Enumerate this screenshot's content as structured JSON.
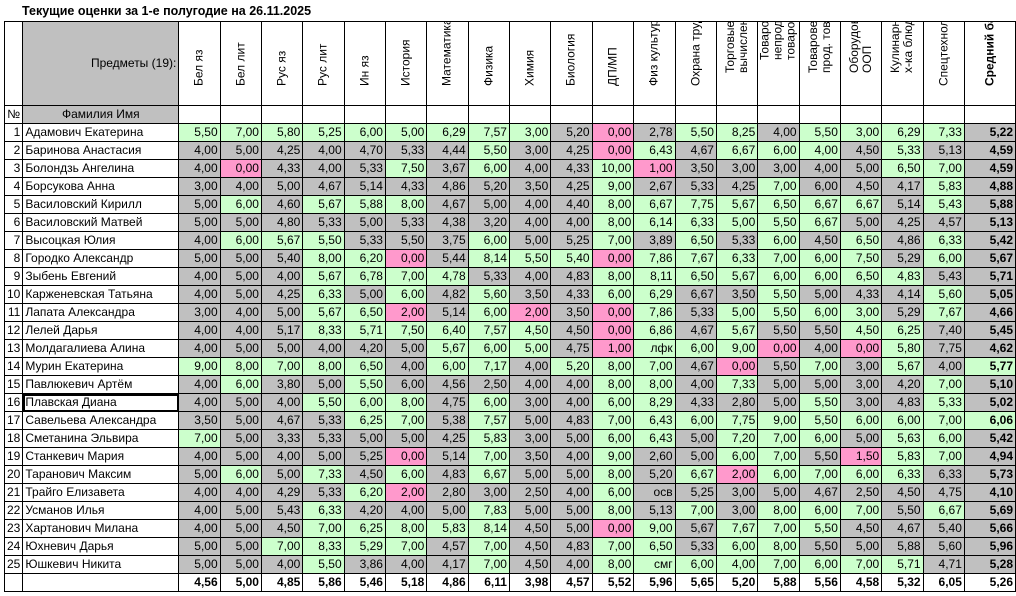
{
  "title": "Текущие оценки за 1-е полугодие на 26.11.2025",
  "header": {
    "subjects_label": "Предметы (19):",
    "name_label": "Фамилия Имя",
    "no_label": "№",
    "subjects": [
      "Бел яз",
      "Бел лит",
      "Рус яз",
      "Рус лит",
      "Ин яз",
      "История",
      "Математика",
      "Физика",
      "Химия",
      "Биология",
      "ДП/МП",
      "Физ культура",
      "Охрана труда",
      "Торговые вычисления",
      "Товароведение непрод. товаров",
      "Товароведение прод. товаров",
      "Оборудование ООП",
      "Кулинарная х-ка блюд",
      "Спецтехнология",
      "Средний балл"
    ]
  },
  "rows": [
    {
      "n": "1",
      "name": "Адамович Екатерина",
      "v": [
        "5,50",
        "7,00",
        "5,80",
        "5,25",
        "6,00",
        "5,00",
        "6,29",
        "7,57",
        "3,00",
        "5,20",
        "0,00",
        "2,78",
        "5,50",
        "8,25",
        "4,00",
        "5,50",
        "3,00",
        "6,29",
        "7,33",
        "5,22"
      ],
      "c": "gggggggggxpxggxggggx"
    },
    {
      "n": "2",
      "name": "Баринова Анастасия",
      "v": [
        "4,00",
        "5,00",
        "4,25",
        "4,00",
        "4,70",
        "5,33",
        "4,44",
        "5,50",
        "3,00",
        "4,25",
        "0,00",
        "6,43",
        "4,67",
        "6,67",
        "6,00",
        "4,00",
        "4,50",
        "5,33",
        "5,13",
        "4,59"
      ],
      "c": "xxxxxxxgxxpgxgggxgxx"
    },
    {
      "n": "3",
      "name": "Болондзь Ангелина",
      "v": [
        "4,00",
        "0,00",
        "4,33",
        "4,00",
        "5,33",
        "7,50",
        "3,67",
        "6,00",
        "4,00",
        "4,33",
        "10,00",
        "1,00",
        "3,50",
        "3,00",
        "3,00",
        "4,00",
        "5,00",
        "6,50",
        "7,00",
        "4,59"
      ],
      "c": "xpxxxgxgxxgpxxxxxggx"
    },
    {
      "n": "4",
      "name": "Борсукова Анна",
      "v": [
        "3,00",
        "4,00",
        "5,00",
        "4,67",
        "5,14",
        "4,33",
        "4,86",
        "5,20",
        "3,50",
        "4,25",
        "9,00",
        "2,67",
        "5,33",
        "4,25",
        "7,00",
        "6,00",
        "4,50",
        "4,17",
        "5,83",
        "4,88"
      ],
      "c": "xxxxxxxxxxgxxxgxxxgx"
    },
    {
      "n": "5",
      "name": "Василовский Кирилл",
      "v": [
        "5,00",
        "6,00",
        "4,60",
        "5,67",
        "5,88",
        "8,00",
        "4,67",
        "5,00",
        "4,00",
        "4,40",
        "8,00",
        "6,67",
        "7,75",
        "5,67",
        "6,50",
        "6,67",
        "6,67",
        "5,14",
        "5,43",
        "5,88"
      ],
      "c": "xgxgggxxxxgggggggxgx"
    },
    {
      "n": "6",
      "name": "Василовский Матвей",
      "v": [
        "5,00",
        "5,00",
        "4,80",
        "5,33",
        "5,00",
        "5,33",
        "4,38",
        "3,20",
        "4,00",
        "4,00",
        "8,00",
        "6,14",
        "6,33",
        "5,00",
        "5,50",
        "6,67",
        "5,00",
        "4,25",
        "4,57",
        "5,13"
      ],
      "c": "xxxxxxxxxxggggggxxxx"
    },
    {
      "n": "7",
      "name": "Высоцкая Юлия",
      "v": [
        "4,00",
        "6,00",
        "5,67",
        "5,50",
        "5,33",
        "5,50",
        "3,75",
        "6,00",
        "5,00",
        "5,25",
        "7,00",
        "3,89",
        "6,50",
        "5,33",
        "6,00",
        "4,50",
        "6,50",
        "4,86",
        "6,33",
        "5,42"
      ],
      "c": "xgggxxxgxxgxgxgxgxgx"
    },
    {
      "n": "8",
      "name": "Городко Александр",
      "v": [
        "5,00",
        "5,00",
        "5,40",
        "8,00",
        "6,20",
        "0,00",
        "5,44",
        "8,14",
        "5,50",
        "5,40",
        "0,00",
        "7,86",
        "7,67",
        "6,33",
        "7,00",
        "6,00",
        "7,50",
        "5,29",
        "6,00",
        "5,67"
      ],
      "c": "xxxggpxgggpggggggxgx"
    },
    {
      "n": "9",
      "name": "Зыбень Евгений",
      "v": [
        "4,00",
        "5,00",
        "4,00",
        "5,67",
        "6,78",
        "7,00",
        "4,78",
        "5,33",
        "4,00",
        "4,83",
        "8,00",
        "8,11",
        "6,50",
        "5,67",
        "6,00",
        "6,00",
        "6,50",
        "4,83",
        "5,43",
        "5,71"
      ],
      "c": "xxxggggxxxggggggggxx"
    },
    {
      "n": "10",
      "name": "Карженевская Татьяна",
      "v": [
        "4,00",
        "5,00",
        "4,25",
        "6,33",
        "5,00",
        "6,00",
        "4,82",
        "5,60",
        "3,50",
        "4,33",
        "6,00",
        "6,29",
        "6,67",
        "3,50",
        "5,50",
        "5,00",
        "4,33",
        "4,14",
        "5,60",
        "5,05"
      ],
      "c": "xxxgxgxgxxggxxgxxxgx"
    },
    {
      "n": "11",
      "name": "Лапата Александра",
      "v": [
        "3,00",
        "4,00",
        "5,00",
        "5,67",
        "6,50",
        "2,00",
        "5,14",
        "6,00",
        "2,00",
        "3,50",
        "0,00",
        "7,86",
        "5,33",
        "5,00",
        "5,50",
        "6,00",
        "3,00",
        "5,29",
        "7,67",
        "4,66"
      ],
      "c": "xxxggpxgpxpgxggggxgx"
    },
    {
      "n": "12",
      "name": "Лелей Дарья",
      "v": [
        "4,00",
        "4,00",
        "5,17",
        "8,33",
        "5,71",
        "7,50",
        "6,40",
        "7,57",
        "4,50",
        "4,50",
        "0,00",
        "6,86",
        "4,67",
        "5,67",
        "5,50",
        "5,50",
        "4,50",
        "6,25",
        "7,40",
        "5,45"
      ],
      "c": "xxxggggggxpgxgxxggxx"
    },
    {
      "n": "13",
      "name": "Молдагалиева Алина",
      "v": [
        "4,00",
        "5,00",
        "5,00",
        "4,00",
        "4,20",
        "5,00",
        "5,67",
        "6,00",
        "5,00",
        "4,75",
        "1,00",
        "лфк",
        "6,00",
        "9,00",
        "0,00",
        "4,00",
        "0,00",
        "5,80",
        "7,75",
        "4,62"
      ],
      "c": "xxxxxxgggxpgggpxpgxx"
    },
    {
      "n": "14",
      "name": "Мурин Екатерина",
      "v": [
        "9,00",
        "8,00",
        "7,00",
        "8,00",
        "6,50",
        "4,00",
        "6,00",
        "7,17",
        "4,00",
        "5,20",
        "8,00",
        "7,00",
        "4,67",
        "0,00",
        "5,50",
        "7,00",
        "3,00",
        "5,67",
        "4,00",
        "5,77"
      ],
      "c": "gggggxggxgggxpxgxgxg"
    },
    {
      "n": "15",
      "name": "Павлюкевич Артём",
      "v": [
        "4,00",
        "6,00",
        "3,80",
        "5,00",
        "5,50",
        "6,00",
        "4,56",
        "2,50",
        "4,00",
        "4,00",
        "8,00",
        "8,00",
        "4,00",
        "7,33",
        "5,00",
        "5,00",
        "3,00",
        "4,20",
        "7,00",
        "5,10"
      ],
      "c": "xgxxgxxxxxggxgxxxxgx"
    },
    {
      "n": "16",
      "name": "Плавская Диана",
      "v": [
        "4,00",
        "5,00",
        "4,00",
        "5,50",
        "6,00",
        "8,00",
        "4,75",
        "6,00",
        "3,00",
        "4,00",
        "6,00",
        "8,29",
        "4,33",
        "2,80",
        "5,00",
        "5,50",
        "3,00",
        "4,83",
        "5,33",
        "5,02"
      ],
      "c": "xxxgggxgxxggxxxgxxgx"
    },
    {
      "n": "17",
      "name": "Савельева  Александра",
      "v": [
        "3,50",
        "5,00",
        "4,67",
        "5,33",
        "6,25",
        "7,00",
        "5,38",
        "7,57",
        "5,00",
        "4,83",
        "7,00",
        "6,43",
        "6,00",
        "7,75",
        "9,00",
        "5,50",
        "6,00",
        "6,00",
        "7,00",
        "6,06"
      ],
      "c": "xxxxggxgxxgggggggggg"
    },
    {
      "n": "18",
      "name": "Сметанина Эльвира",
      "v": [
        "7,00",
        "5,00",
        "3,33",
        "5,33",
        "5,00",
        "5,00",
        "4,25",
        "5,83",
        "3,00",
        "5,00",
        "6,00",
        "6,43",
        "5,00",
        "7,20",
        "7,00",
        "6,00",
        "5,00",
        "5,63",
        "6,00",
        "5,42"
      ],
      "c": "gxxxxxxgxxggxgggxggx"
    },
    {
      "n": "19",
      "name": "Станкевич Мария",
      "v": [
        "4,00",
        "5,00",
        "4,00",
        "5,00",
        "5,25",
        "0,00",
        "5,14",
        "7,00",
        "3,50",
        "4,00",
        "9,00",
        "2,60",
        "5,00",
        "6,00",
        "7,00",
        "5,50",
        "1,50",
        "5,83",
        "7,00",
        "4,94"
      ],
      "c": "xxxxxpxgxxgxxggxpggx"
    },
    {
      "n": "20",
      "name": "Таранович Максим",
      "v": [
        "5,00",
        "6,00",
        "5,00",
        "7,33",
        "4,50",
        "6,00",
        "4,83",
        "6,67",
        "5,00",
        "5,00",
        "8,00",
        "5,20",
        "6,67",
        "2,00",
        "6,00",
        "7,00",
        "6,00",
        "6,33",
        "6,33",
        "5,73"
      ],
      "c": "xgxgxgxgxxgxgpggggxx"
    },
    {
      "n": "21",
      "name": "Трайго Елизавета",
      "v": [
        "4,00",
        "4,00",
        "4,29",
        "5,33",
        "6,20",
        "2,00",
        "2,80",
        "3,00",
        "2,50",
        "4,00",
        "6,00",
        "осв",
        "5,25",
        "3,00",
        "5,00",
        "4,67",
        "2,50",
        "4,50",
        "4,75",
        "4,10"
      ],
      "c": "xxxxgpxxxxgxxxxxxxxx"
    },
    {
      "n": "22",
      "name": "Усманов Илья",
      "v": [
        "4,00",
        "5,00",
        "5,43",
        "6,33",
        "4,20",
        "4,00",
        "5,00",
        "7,83",
        "5,00",
        "5,00",
        "8,00",
        "5,13",
        "7,00",
        "3,00",
        "8,00",
        "6,00",
        "7,00",
        "5,50",
        "6,67",
        "5,69"
      ],
      "c": "xxxgxxxgxxgxgxgggxgx"
    },
    {
      "n": "23",
      "name": "Хартанович Милана",
      "v": [
        "4,00",
        "5,00",
        "4,50",
        "7,00",
        "6,25",
        "8,00",
        "5,83",
        "8,14",
        "4,50",
        "5,00",
        "0,00",
        "9,00",
        "5,67",
        "7,67",
        "7,00",
        "5,50",
        "4,50",
        "4,67",
        "5,40",
        "5,66"
      ],
      "c": "xxxgggggxxpgxgggxxxx"
    },
    {
      "n": "24",
      "name": "Юхневич Дарья",
      "v": [
        "5,00",
        "5,00",
        "7,00",
        "8,33",
        "5,29",
        "7,00",
        "4,57",
        "7,00",
        "4,50",
        "4,83",
        "7,00",
        "6,50",
        "5,33",
        "6,00",
        "8,00",
        "5,50",
        "5,00",
        "5,88",
        "5,60",
        "5,96"
      ],
      "c": "xxggggxgxxggxggxxxxx"
    },
    {
      "n": "25",
      "name": "Юшкевич Никита",
      "v": [
        "5,00",
        "5,00",
        "4,00",
        "5,50",
        "3,86",
        "4,00",
        "4,17",
        "7,00",
        "4,50",
        "4,00",
        "8,00",
        "смг",
        "6,00",
        "4,00",
        "7,00",
        "6,00",
        "7,00",
        "5,71",
        "4,71",
        "5,28"
      ],
      "c": "xxxgxxxgxxggggggggxx"
    }
  ],
  "footer": [
    "4,56",
    "5,00",
    "4,85",
    "5,86",
    "5,46",
    "5,18",
    "4,86",
    "6,11",
    "3,98",
    "4,57",
    "5,52",
    "5,96",
    "5,65",
    "5,20",
    "5,88",
    "5,56",
    "4,58",
    "5,32",
    "6,05",
    "5,26"
  ],
  "colors": {
    "green": "#ccffcc",
    "gray": "#c0c0c0",
    "pink": "#ff99cc"
  }
}
